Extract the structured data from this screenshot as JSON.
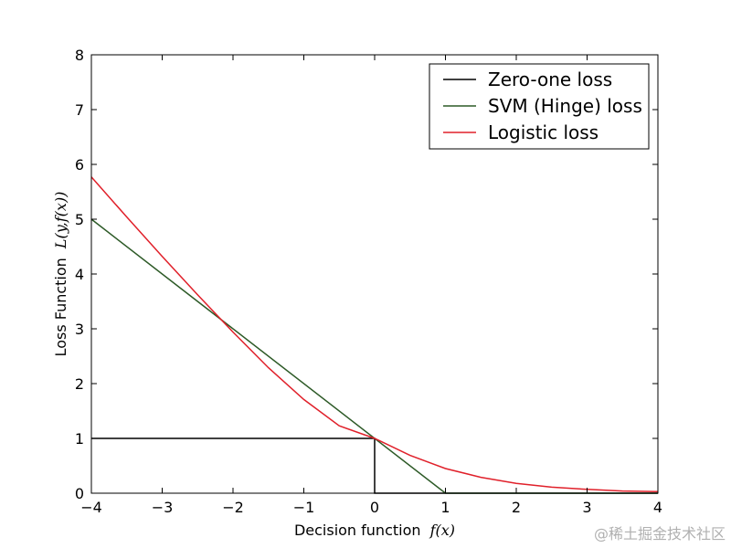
{
  "chart_data": {
    "type": "line",
    "title": "",
    "xlabel": "Decision function",
    "xlabel_math": "f(x)",
    "ylabel": "Loss Function",
    "ylabel_math": "L(y,f(x))",
    "xlim": [
      -4,
      4
    ],
    "ylim": [
      0,
      8
    ],
    "x_ticks": [
      -4,
      -3,
      -2,
      -1,
      0,
      1,
      2,
      3,
      4
    ],
    "x_tick_labels": [
      "−4",
      "−3",
      "−2",
      "−1",
      "0",
      "1",
      "2",
      "3",
      "4"
    ],
    "y_ticks": [
      0,
      1,
      2,
      3,
      4,
      5,
      6,
      7,
      8
    ],
    "y_tick_labels": [
      "0",
      "1",
      "2",
      "3",
      "4",
      "5",
      "6",
      "7",
      "8"
    ],
    "grid": false,
    "legend_position": "top-right",
    "series": [
      {
        "name": "Zero-one loss",
        "color": "#000000",
        "x": [
          -4,
          0,
          0,
          4
        ],
        "y": [
          1,
          1,
          0,
          0
        ]
      },
      {
        "name": "SVM (Hinge) loss",
        "color": "#2d5a27",
        "x": [
          -4,
          1,
          4
        ],
        "y": [
          5,
          0,
          0
        ]
      },
      {
        "name": "Logistic loss",
        "color": "#e0202a",
        "x": [
          -4,
          -3.5,
          -3,
          -2.5,
          -2,
          -1.5,
          -1,
          -0.5,
          0,
          0.5,
          1,
          1.5,
          2,
          2.5,
          3,
          3.5,
          4
        ],
        "y": [
          5.77,
          5.04,
          4.32,
          3.62,
          2.94,
          2.29,
          1.71,
          1.23,
          1.0,
          0.69,
          0.45,
          0.29,
          0.18,
          0.11,
          0.07,
          0.04,
          0.03
        ]
      }
    ]
  },
  "watermark": "@稀土掘金技术社区"
}
